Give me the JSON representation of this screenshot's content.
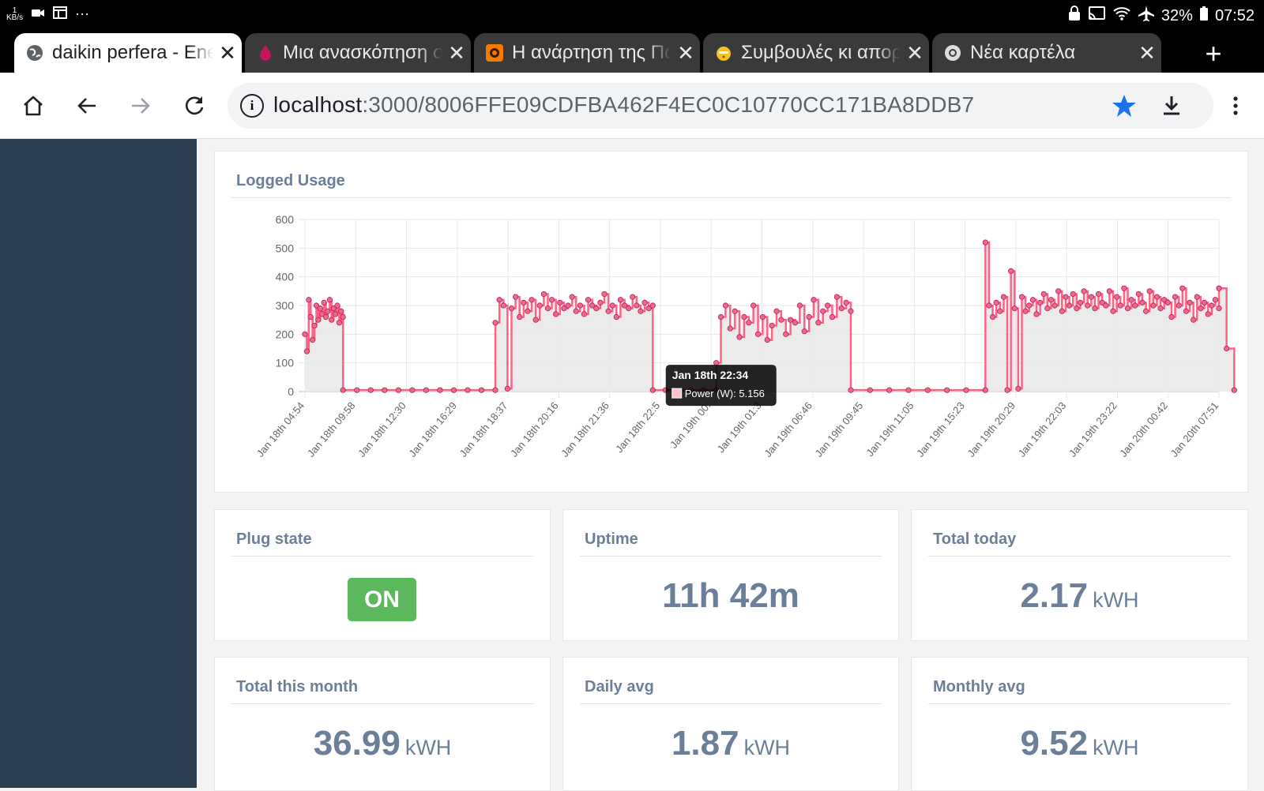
{
  "statusbar": {
    "kb_top": "1",
    "kb_bottom": "KB/s",
    "more": "···",
    "battery": "32%",
    "time": "07:52"
  },
  "tabs": [
    {
      "title": "daikin perfera - Energy",
      "icon": "globe-icon",
      "icon_color": "#5f6368",
      "active": true
    },
    {
      "title": "Μια ανασκόπηση στο",
      "icon": "drop-icon",
      "icon_color": "#c2185b",
      "active": false
    },
    {
      "title": "Η ανάρτηση της Πωλ",
      "icon": "blogger-icon",
      "icon_color": "#f57c00",
      "active": false
    },
    {
      "title": "Συμβουλές κι απορίες",
      "icon": "face-icon",
      "icon_color": "#f6c026",
      "active": false
    },
    {
      "title": "Νέα καρτέλα",
      "icon": "chrome-icon",
      "icon_color": "#dddddd",
      "active": false
    }
  ],
  "toolbar": {
    "url_host": "localhost",
    "url_path": ":3000/8006FFE09CDFBA462F4EC0C10770CC171BA8DDB7",
    "star_color": "#1a73e8"
  },
  "chart_card": {
    "title": "Logged Usage"
  },
  "tooltip": {
    "title": "Jan 18th 22:34",
    "body": "Power (W): 5.156"
  },
  "cards": {
    "plug_state": {
      "title": "Plug state",
      "value": "ON"
    },
    "uptime": {
      "title": "Uptime",
      "value": "11h 42m"
    },
    "total_today": {
      "title": "Total today",
      "value": "2.17",
      "unit": "kWH"
    },
    "total_month": {
      "title": "Total this month",
      "value": "36.99",
      "unit": "kWH"
    },
    "daily_avg": {
      "title": "Daily avg",
      "value": "1.87",
      "unit": "kWH"
    },
    "monthly_avg": {
      "title": "Monthly avg",
      "value": "9.52",
      "unit": "kWH"
    }
  },
  "colors": {
    "line": "#ff6384",
    "fill": "#e8e8e8",
    "sidebar": "#2d3e50",
    "accent_on": "#5cb85c",
    "metric_text": "#6b7f99"
  },
  "chart_data": {
    "type": "line",
    "series_name": "Power (W)",
    "ylim": [
      0,
      600
    ],
    "y_ticks": [
      0,
      100,
      200,
      300,
      400,
      500,
      600
    ],
    "x_labels": [
      "Jan 18th 04:54",
      "Jan 18th 09:58",
      "Jan 18th 12:30",
      "Jan 18th 16:29",
      "Jan 18th 18:37",
      "Jan 18th 20:16",
      "Jan 18th 21:36",
      "Jan 18th 22:5",
      "Jan 19th 00:",
      "Jan 19th 01:3",
      "Jan 19th 06:46",
      "Jan 19th 09:45",
      "Jan 19th 11:05",
      "Jan 19th 15:23",
      "Jan 19th 20:29",
      "Jan 19th 22:03",
      "Jan 19th 23:22",
      "Jan 20th 00:42",
      "Jan 20th 07:51"
    ],
    "grid": true,
    "legend": "none",
    "segments": [
      {
        "x_start": 0.0,
        "x_end": 0.75,
        "values": [
          200,
          140,
          320,
          260,
          180,
          230,
          300,
          250,
          290,
          270,
          310,
          260,
          280,
          320,
          250,
          290,
          270,
          300,
          240,
          280,
          260
        ]
      },
      {
        "x_start": 0.75,
        "x_end": 3.75,
        "values": [
          5,
          5,
          5,
          5,
          5,
          5,
          5,
          5,
          5,
          5,
          5,
          5
        ]
      },
      {
        "x_start": 3.75,
        "x_end": 6.85,
        "values": [
          240,
          320,
          300,
          10,
          290,
          330,
          260,
          310,
          280,
          320,
          250,
          300,
          340,
          290,
          320,
          270,
          310,
          290,
          300,
          330,
          280,
          300,
          270,
          320,
          300,
          290,
          310,
          340,
          280,
          300,
          260,
          320,
          300,
          290,
          330,
          300,
          280,
          310,
          290,
          300
        ]
      },
      {
        "x_start": 6.85,
        "x_end": 8.1,
        "values": [
          5,
          5,
          5,
          5,
          5,
          5
        ]
      },
      {
        "x_start": 8.1,
        "x_end": 10.75,
        "values": [
          100,
          260,
          300,
          220,
          280,
          190,
          260,
          240,
          300,
          200,
          260,
          180,
          230,
          280,
          250,
          200,
          250,
          240,
          300,
          210,
          260,
          320,
          240,
          280,
          300,
          260,
          330,
          290,
          310,
          280
        ]
      },
      {
        "x_start": 10.75,
        "x_end": 13.4,
        "values": [
          5,
          5,
          5,
          5,
          5,
          5,
          5,
          5
        ]
      },
      {
        "x_start": 13.4,
        "x_end": 18.0,
        "values": [
          520,
          300,
          260,
          310,
          280,
          330,
          5,
          420,
          290,
          10,
          330,
          280,
          300,
          320,
          270,
          310,
          340,
          290,
          320,
          300,
          350,
          280,
          330,
          300,
          340,
          290,
          310,
          350,
          300,
          330,
          290,
          340,
          310,
          300,
          350,
          280,
          330,
          300,
          360,
          290,
          320,
          300,
          340,
          310,
          280,
          350,
          300,
          330,
          290,
          320,
          310,
          260,
          330,
          300,
          360,
          280,
          310,
          250,
          330,
          290,
          310,
          270,
          300,
          320,
          290
        ]
      },
      {
        "x_start": 18.0,
        "x_end": 18.3,
        "values": [
          360,
          150,
          5
        ]
      }
    ],
    "highlight": {
      "x": 6.95,
      "y": 5.156,
      "label": "Jan 18th 22:34"
    }
  }
}
